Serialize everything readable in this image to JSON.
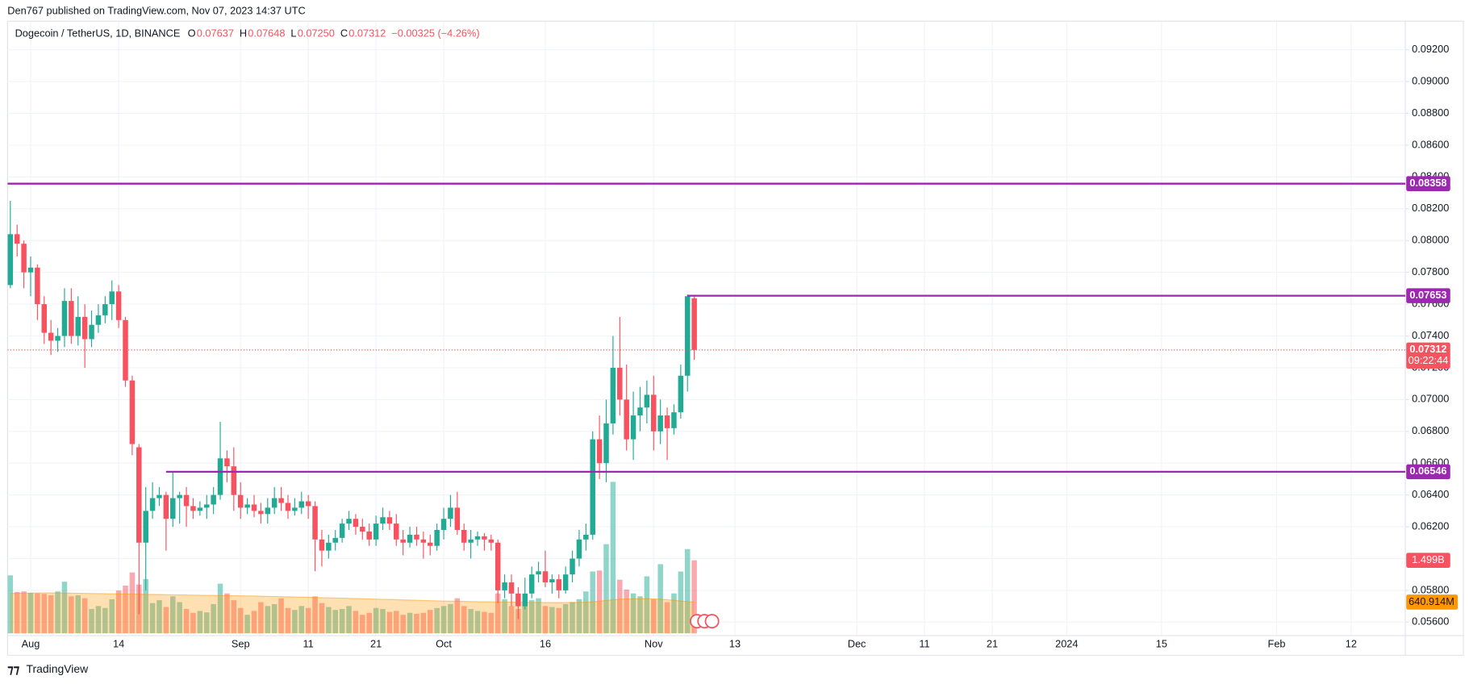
{
  "header": {
    "credit": "Den767 published on TradingView.com, Nov 07, 2023 14:37 UTC"
  },
  "footer": {
    "logo": "TradingView"
  },
  "chart_data": {
    "type": "candlestick",
    "title": "Dogecoin / TetherUS, 1D, BINANCE",
    "legend_keys": [
      "O",
      "H",
      "L",
      "C"
    ],
    "ohlc_labels": [
      "0.07637",
      "0.07648",
      "0.07250",
      "0.07312"
    ],
    "change_label": "−0.00325 (−4.26%)",
    "up_color": "#22ab94",
    "down_color": "#f7525f",
    "grid": true,
    "x": [
      "2023-07-29",
      "2023-07-30",
      "2023-07-31",
      "2023-08-01",
      "2023-08-02",
      "2023-08-03",
      "2023-08-04",
      "2023-08-05",
      "2023-08-06",
      "2023-08-07",
      "2023-08-08",
      "2023-08-09",
      "2023-08-10",
      "2023-08-11",
      "2023-08-12",
      "2023-08-13",
      "2023-08-14",
      "2023-08-15",
      "2023-08-16",
      "2023-08-17",
      "2023-08-18",
      "2023-08-19",
      "2023-08-20",
      "2023-08-21",
      "2023-08-22",
      "2023-08-23",
      "2023-08-24",
      "2023-08-25",
      "2023-08-26",
      "2023-08-27",
      "2023-08-28",
      "2023-08-29",
      "2023-08-30",
      "2023-08-31",
      "2023-09-01",
      "2023-09-02",
      "2023-09-03",
      "2023-09-04",
      "2023-09-05",
      "2023-09-06",
      "2023-09-07",
      "2023-09-08",
      "2023-09-09",
      "2023-09-10",
      "2023-09-11",
      "2023-09-12",
      "2023-09-13",
      "2023-09-14",
      "2023-09-15",
      "2023-09-16",
      "2023-09-17",
      "2023-09-18",
      "2023-09-19",
      "2023-09-20",
      "2023-09-21",
      "2023-09-22",
      "2023-09-23",
      "2023-09-24",
      "2023-09-25",
      "2023-09-26",
      "2023-09-27",
      "2023-09-28",
      "2023-09-29",
      "2023-09-30",
      "2023-10-01",
      "2023-10-02",
      "2023-10-03",
      "2023-10-04",
      "2023-10-05",
      "2023-10-06",
      "2023-10-07",
      "2023-10-08",
      "2023-10-09",
      "2023-10-10",
      "2023-10-11",
      "2023-10-12",
      "2023-10-13",
      "2023-10-14",
      "2023-10-15",
      "2023-10-16",
      "2023-10-17",
      "2023-10-18",
      "2023-10-19",
      "2023-10-20",
      "2023-10-21",
      "2023-10-22",
      "2023-10-23",
      "2023-10-24",
      "2023-10-25",
      "2023-10-26",
      "2023-10-27",
      "2023-10-28",
      "2023-10-29",
      "2023-10-30",
      "2023-10-31",
      "2023-11-01",
      "2023-11-02",
      "2023-11-03",
      "2023-11-04",
      "2023-11-05",
      "2023-11-06",
      "2023-11-07"
    ],
    "open": [
      0.0772,
      0.0804,
      0.0798,
      0.078,
      0.0783,
      0.076,
      0.0742,
      0.0737,
      0.074,
      0.0762,
      0.074,
      0.0752,
      0.0738,
      0.0747,
      0.0753,
      0.076,
      0.0768,
      0.075,
      0.0712,
      0.067,
      0.061,
      0.063,
      0.0638,
      0.064,
      0.0625,
      0.0638,
      0.064,
      0.0633,
      0.063,
      0.0632,
      0.0634,
      0.064,
      0.0663,
      0.0658,
      0.064,
      0.0632,
      0.0634,
      0.063,
      0.0628,
      0.0632,
      0.0638,
      0.0635,
      0.063,
      0.0632,
      0.0636,
      0.0633,
      0.0612,
      0.0605,
      0.061,
      0.0613,
      0.0622,
      0.0625,
      0.062,
      0.0617,
      0.0612,
      0.0622,
      0.0626,
      0.0622,
      0.0612,
      0.061,
      0.0615,
      0.0612,
      0.061,
      0.0608,
      0.0618,
      0.0625,
      0.0632,
      0.0618,
      0.061,
      0.0612,
      0.0614,
      0.0612,
      0.061,
      0.058,
      0.0585,
      0.0578,
      0.057,
      0.0578,
      0.059,
      0.0592,
      0.0585,
      0.0587,
      0.058,
      0.059,
      0.06,
      0.0612,
      0.0615,
      0.0675,
      0.066,
      0.0685,
      0.072,
      0.07,
      0.0675,
      0.069,
      0.0695,
      0.0703,
      0.068,
      0.069,
      0.0682,
      0.0692,
      0.0715,
      0.07637
    ],
    "high": [
      0.0825,
      0.081,
      0.08,
      0.079,
      0.0785,
      0.0765,
      0.075,
      0.0745,
      0.077,
      0.077,
      0.0765,
      0.076,
      0.0756,
      0.076,
      0.0765,
      0.0775,
      0.0772,
      0.0752,
      0.0715,
      0.0672,
      0.0645,
      0.0648,
      0.0645,
      0.0642,
      0.0655,
      0.0642,
      0.0645,
      0.0638,
      0.0636,
      0.064,
      0.0645,
      0.0686,
      0.0668,
      0.067,
      0.0648,
      0.0638,
      0.064,
      0.0635,
      0.0638,
      0.0645,
      0.0645,
      0.064,
      0.0638,
      0.0642,
      0.064,
      0.0636,
      0.0618,
      0.0615,
      0.0618,
      0.0625,
      0.063,
      0.0628,
      0.0625,
      0.0622,
      0.0627,
      0.0632,
      0.063,
      0.0628,
      0.0618,
      0.062,
      0.062,
      0.0617,
      0.0615,
      0.0622,
      0.0632,
      0.064,
      0.0642,
      0.0622,
      0.0618,
      0.0617,
      0.0616,
      0.0615,
      0.0612,
      0.059,
      0.059,
      0.0582,
      0.0588,
      0.0595,
      0.0598,
      0.0605,
      0.059,
      0.059,
      0.0595,
      0.0605,
      0.0618,
      0.0622,
      0.068,
      0.069,
      0.07,
      0.074,
      0.0752,
      0.0722,
      0.0705,
      0.0708,
      0.0712,
      0.0715,
      0.07,
      0.0695,
      0.0697,
      0.0722,
      0.0766,
      0.07648
    ],
    "low": [
      0.077,
      0.079,
      0.077,
      0.0765,
      0.075,
      0.0735,
      0.0728,
      0.073,
      0.0733,
      0.0735,
      0.0734,
      0.072,
      0.0733,
      0.0742,
      0.0748,
      0.075,
      0.0745,
      0.0708,
      0.0665,
      0.0565,
      0.058,
      0.0625,
      0.0633,
      0.0605,
      0.062,
      0.0622,
      0.062,
      0.0625,
      0.0627,
      0.0625,
      0.0628,
      0.0637,
      0.0648,
      0.063,
      0.0625,
      0.0628,
      0.0626,
      0.0622,
      0.0622,
      0.0628,
      0.063,
      0.0625,
      0.0627,
      0.0628,
      0.0625,
      0.0592,
      0.0595,
      0.06,
      0.0605,
      0.061,
      0.0618,
      0.0615,
      0.0612,
      0.0608,
      0.0608,
      0.0618,
      0.0618,
      0.0608,
      0.0602,
      0.0607,
      0.0608,
      0.06,
      0.0602,
      0.0605,
      0.0612,
      0.062,
      0.0615,
      0.0605,
      0.06,
      0.0608,
      0.0605,
      0.0605,
      0.0572,
      0.0575,
      0.057,
      0.0562,
      0.0568,
      0.0575,
      0.0585,
      0.0582,
      0.0578,
      0.0575,
      0.0578,
      0.0585,
      0.0595,
      0.0605,
      0.0612,
      0.065,
      0.0648,
      0.0678,
      0.069,
      0.0668,
      0.0662,
      0.068,
      0.0685,
      0.0668,
      0.0672,
      0.0662,
      0.0678,
      0.0688,
      0.0705,
      0.0725
    ],
    "close": [
      0.0804,
      0.0798,
      0.078,
      0.0783,
      0.076,
      0.0742,
      0.0737,
      0.074,
      0.0762,
      0.074,
      0.0752,
      0.0738,
      0.0747,
      0.0753,
      0.076,
      0.0768,
      0.075,
      0.0712,
      0.0672,
      0.061,
      0.063,
      0.0638,
      0.064,
      0.0625,
      0.0638,
      0.064,
      0.0633,
      0.063,
      0.0632,
      0.0634,
      0.064,
      0.0663,
      0.0658,
      0.064,
      0.0632,
      0.0634,
      0.063,
      0.0628,
      0.0632,
      0.0638,
      0.0635,
      0.063,
      0.0632,
      0.0636,
      0.0633,
      0.0612,
      0.0605,
      0.061,
      0.0613,
      0.0622,
      0.0625,
      0.062,
      0.0617,
      0.0612,
      0.0622,
      0.0626,
      0.0622,
      0.0612,
      0.061,
      0.0615,
      0.0612,
      0.061,
      0.0608,
      0.0618,
      0.0625,
      0.0632,
      0.0618,
      0.061,
      0.0612,
      0.0614,
      0.0612,
      0.061,
      0.058,
      0.0585,
      0.0578,
      0.057,
      0.0578,
      0.059,
      0.0592,
      0.0585,
      0.0587,
      0.058,
      0.059,
      0.06,
      0.0612,
      0.0615,
      0.0675,
      0.066,
      0.0685,
      0.072,
      0.07,
      0.0675,
      0.069,
      0.0695,
      0.0703,
      0.068,
      0.069,
      0.0682,
      0.0692,
      0.0715,
      0.0765,
      0.07312
    ],
    "volume": {
      "name": "Volume",
      "last_label": "1.499B",
      "vlim": [
        0,
        5000
      ],
      "values": [
        1190,
        850,
        860,
        830,
        820,
        810,
        780,
        860,
        1060,
        760,
        780,
        720,
        500,
        560,
        520,
        700,
        880,
        980,
        1250,
        1000,
        1115,
        620,
        680,
        540,
        760,
        640,
        500,
        420,
        460,
        430,
        600,
        1020,
        820,
        680,
        520,
        380,
        460,
        640,
        560,
        600,
        720,
        520,
        480,
        560,
        520,
        760,
        620,
        540,
        480,
        500,
        560,
        460,
        380,
        420,
        520,
        500,
        440,
        460,
        380,
        420,
        400,
        420,
        480,
        520,
        560,
        600,
        720,
        560,
        500,
        460,
        440,
        420,
        820,
        700,
        560,
        500,
        620,
        680,
        720,
        560,
        540,
        520,
        600,
        640,
        700,
        860,
        1270,
        1290,
        1830,
        3110,
        1100,
        900,
        820,
        760,
        1170,
        700,
        1420,
        640,
        820,
        1270,
        1730,
        1499
      ]
    },
    "volume_ma": {
      "name": "Volume MA",
      "color": "#ff9800",
      "last_label": "640.914M",
      "values": [
        820,
        822,
        824,
        826,
        828,
        830,
        830,
        828,
        826,
        824,
        822,
        820,
        818,
        816,
        814,
        812,
        810,
        808,
        806,
        804,
        800,
        798,
        796,
        792,
        790,
        788,
        786,
        784,
        782,
        780,
        778,
        776,
        774,
        772,
        770,
        768,
        766,
        762,
        758,
        755,
        752,
        748,
        745,
        742,
        740,
        736,
        732,
        728,
        725,
        722,
        718,
        714,
        710,
        706,
        702,
        698,
        694,
        690,
        686,
        682,
        678,
        674,
        670,
        666,
        662,
        660,
        658,
        655,
        652,
        650,
        648,
        646,
        645,
        644,
        642,
        640,
        638,
        636,
        634,
        632,
        630,
        630,
        632,
        634,
        636,
        640,
        650,
        660,
        675,
        690,
        700,
        705,
        708,
        710,
        712,
        708,
        700,
        690,
        678,
        665,
        652,
        640.914
      ]
    },
    "levels": [
      {
        "value": 0.08358,
        "color": "#9c27b0"
      },
      {
        "value": 0.07653,
        "start": "2023-11-06",
        "color": "#9c27b0"
      },
      {
        "value": 0.06546,
        "start": "2023-08-21",
        "color": "#9c27b0"
      }
    ],
    "countdown": "09:22:44",
    "ylim": [
      0.05518,
      0.09371
    ],
    "yticks": [
      {
        "value": 0.056,
        "label": "0.05600"
      },
      {
        "value": 0.058,
        "label": "0.05800"
      },
      {
        "value": 0.06,
        "label": "0.06000"
      },
      {
        "value": 0.062,
        "label": "0.06200"
      },
      {
        "value": 0.064,
        "label": "0.06400"
      },
      {
        "value": 0.066,
        "label": "0.06600"
      },
      {
        "value": 0.068,
        "label": "0.06800"
      },
      {
        "value": 0.07,
        "label": "0.07000"
      },
      {
        "value": 0.072,
        "label": "0.07200"
      },
      {
        "value": 0.074,
        "label": "0.07400"
      },
      {
        "value": 0.076,
        "label": "0.07600"
      },
      {
        "value": 0.078,
        "label": "0.07800"
      },
      {
        "value": 0.08,
        "label": "0.08000"
      },
      {
        "value": 0.082,
        "label": "0.08200"
      },
      {
        "value": 0.084,
        "label": "0.08400"
      },
      {
        "value": 0.086,
        "label": "0.08600"
      },
      {
        "value": 0.088,
        "label": "0.08800"
      },
      {
        "value": 0.09,
        "label": "0.09000"
      },
      {
        "value": 0.092,
        "label": "0.09200"
      }
    ],
    "xlim": [
      "2023-07-28",
      "2024-02-20"
    ],
    "xticks": [
      {
        "value": "2023-08-01",
        "label": "Aug"
      },
      {
        "value": "2023-08-14",
        "label": "14"
      },
      {
        "value": "2023-09-01",
        "label": "Sep"
      },
      {
        "value": "2023-09-11",
        "label": "11"
      },
      {
        "value": "2023-09-21",
        "label": "21"
      },
      {
        "value": "2023-10-01",
        "label": "Oct"
      },
      {
        "value": "2023-10-16",
        "label": "16"
      },
      {
        "value": "2023-11-01",
        "label": "Nov"
      },
      {
        "value": "2023-11-13",
        "label": "13"
      },
      {
        "value": "2023-12-01",
        "label": "Dec"
      },
      {
        "value": "2023-12-11",
        "label": "11"
      },
      {
        "value": "2023-12-21",
        "label": "21"
      },
      {
        "value": "2024-01-01",
        "label": "2024"
      },
      {
        "value": "2024-01-15",
        "label": "15"
      },
      {
        "value": "2024-02-01",
        "label": "Feb"
      },
      {
        "value": "2024-02-12",
        "label": "12"
      }
    ]
  }
}
